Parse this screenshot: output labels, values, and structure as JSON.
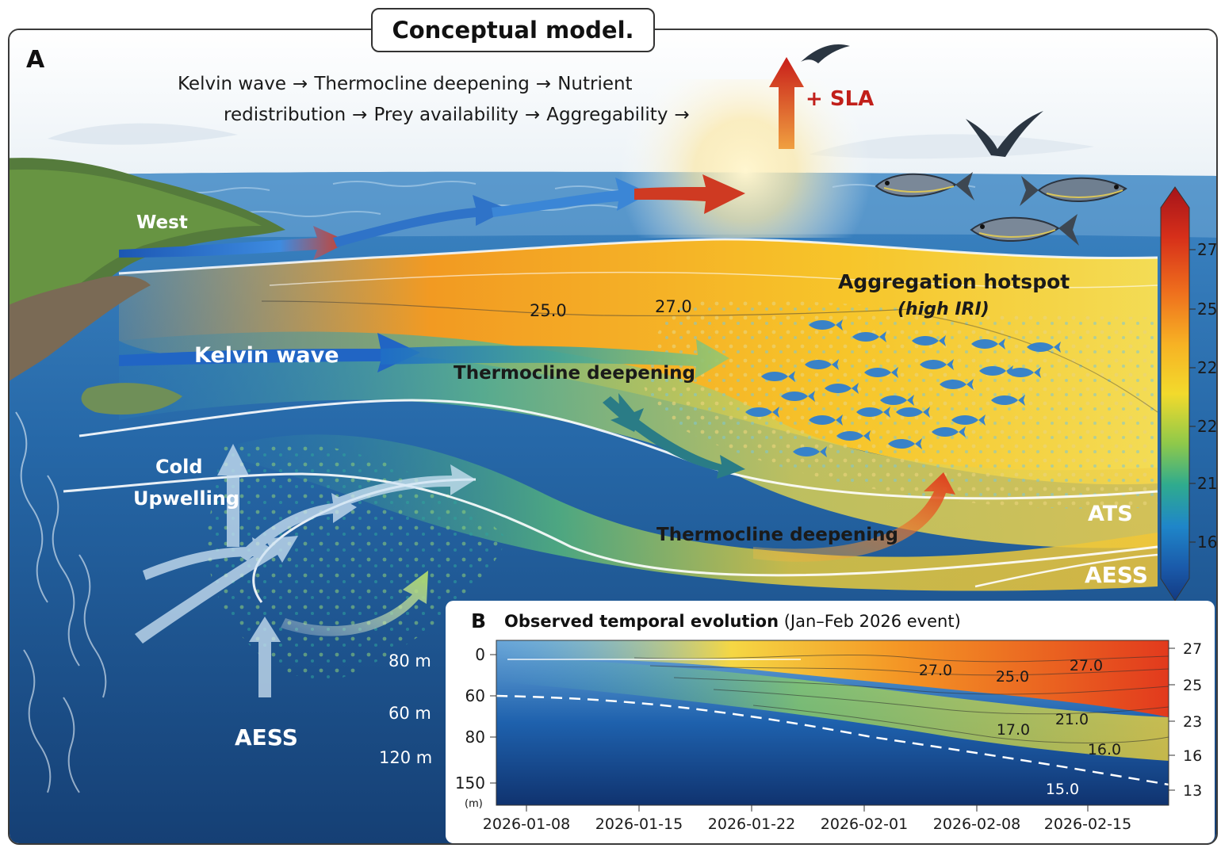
{
  "title": "Conceptual model.",
  "panel_a": {
    "letter": "A",
    "flow": {
      "line1": [
        "Kelvin wave",
        "Thermocline deepening",
        "Nutrient"
      ],
      "line2": [
        "redistribution",
        "Prey availability",
        "Aggregability"
      ],
      "arrow": "→"
    },
    "sla_label": "+ SLA",
    "labels": {
      "west": "West",
      "kelvin": "Kelvin wave",
      "thermo_mid": "Thermocline deepening",
      "thermo_low": "Thermocline deepening",
      "cold": "Cold",
      "upwelling": "Upwelling",
      "aess_left": "AESS",
      "hotspot": "Aggregation hotspot",
      "hotspot_sub": "(high IRI)",
      "ats": "ATS",
      "aess_right": "AESS",
      "iso_a": "25.0",
      "iso_b": "27.0"
    },
    "depth_labels": [
      "80 m",
      "60 m",
      "120 m"
    ],
    "colorbar": {
      "ticks": [
        "27",
        "25",
        "22",
        "22",
        "21",
        "16"
      ],
      "colors": [
        "#b01818",
        "#d9341a",
        "#ef6a1c",
        "#f6a31e",
        "#f4d424",
        "#c8d630",
        "#5fbf58",
        "#2aa7a0",
        "#1f82c9",
        "#1b5fae",
        "#143c86"
      ]
    }
  },
  "panel_b": {
    "letter": "B",
    "title_bold": "Observed temporal evolution",
    "title_rest": " (Jan–Feb 2026 event)",
    "y_ticks": [
      "0",
      "60",
      "80",
      "150"
    ],
    "y_unit": "(m)",
    "x_ticks": [
      "2026-01-08",
      "2026-01-15",
      "2026-01-22",
      "2026-02-01",
      "2026-02-08",
      "2026-02-15"
    ],
    "right_ticks": [
      "27",
      "25",
      "23",
      "16",
      "13"
    ],
    "contour_labels": [
      "27.0",
      "25.0",
      "27.0",
      "17.0",
      "21.0",
      "16.0",
      "15.0"
    ]
  }
}
